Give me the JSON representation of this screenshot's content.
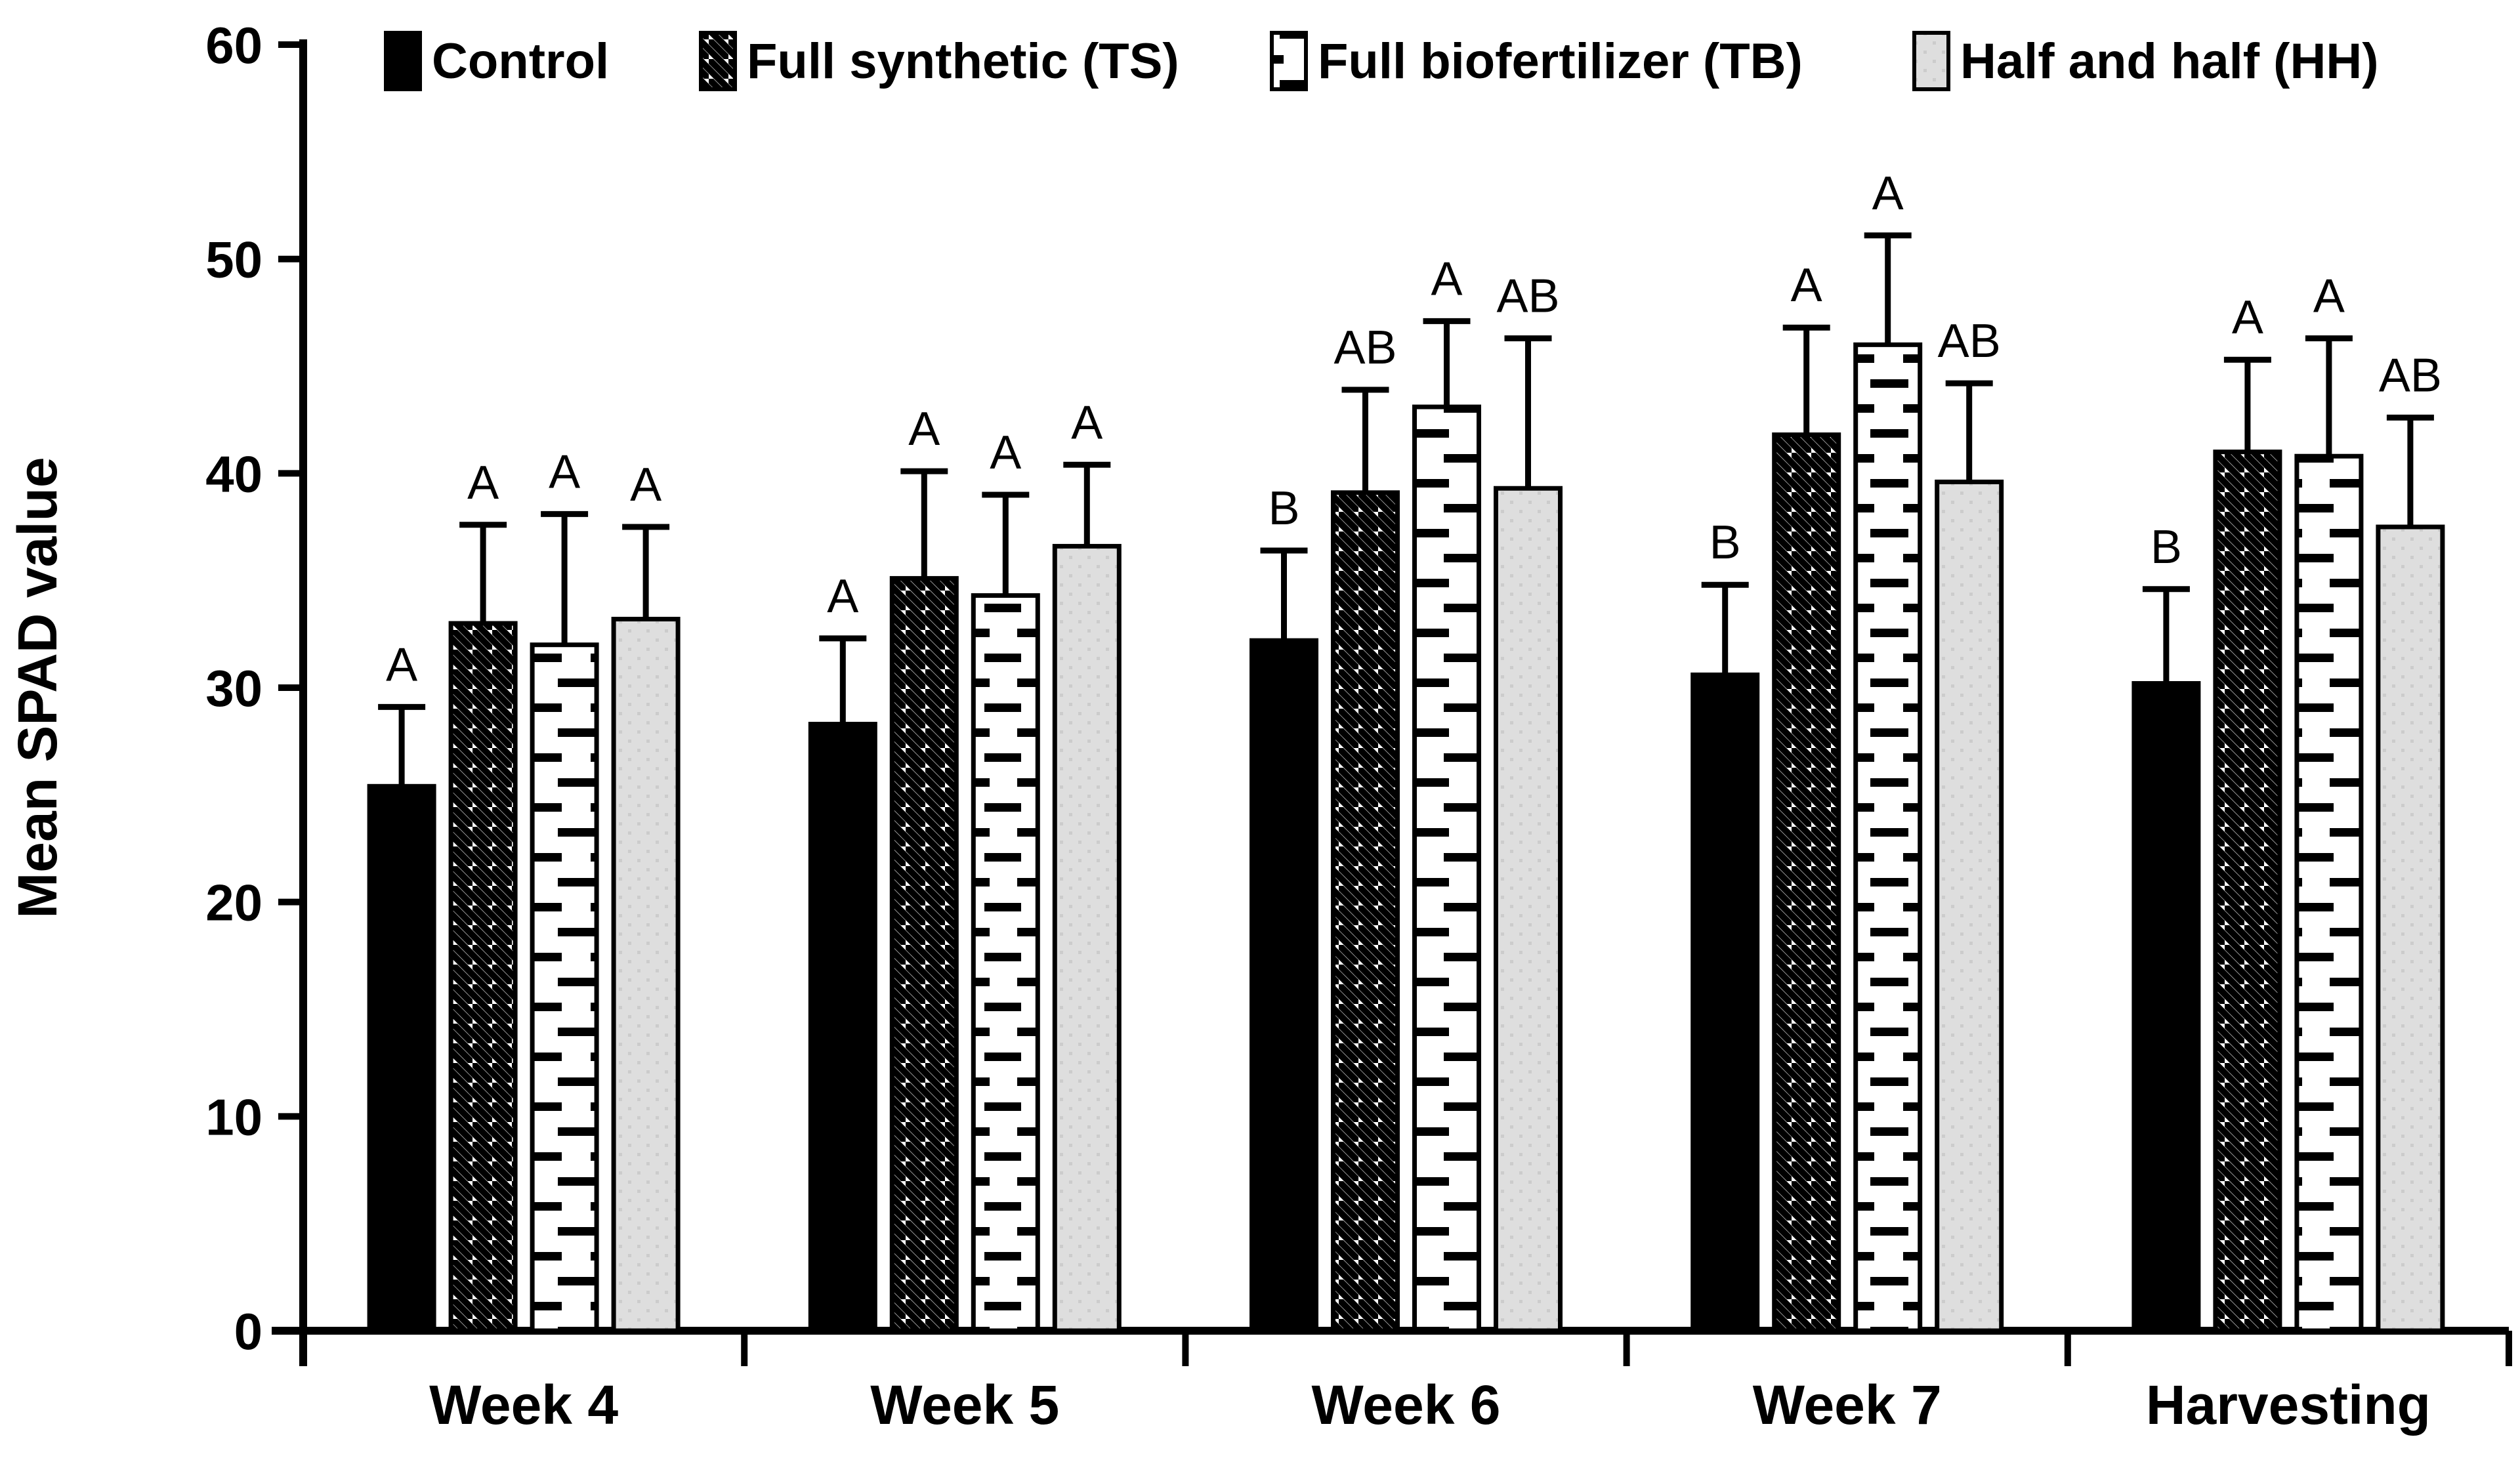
{
  "chart_data": {
    "type": "bar",
    "title": "",
    "ylabel": "Mean SPAD value",
    "xlabel": "",
    "ylim": [
      0,
      60
    ],
    "ytick_step": 10,
    "ytick_labels": [
      "0",
      "10",
      "20",
      "30",
      "40",
      "50",
      "60"
    ],
    "grid": false,
    "legend_position": "top",
    "error_bars": "upper only, capped",
    "categories": [
      "Week 4",
      "Week 5",
      "Week 6",
      "Week 7",
      "Harvesting"
    ],
    "series": [
      {
        "name": "Control",
        "swatch": "solid-black",
        "values": [
          25.4,
          28.3,
          32.2,
          30.6,
          30.2
        ],
        "errors": [
          3.7,
          4.0,
          4.2,
          4.2,
          4.4
        ],
        "letters": [
          "A",
          "A",
          "B",
          "B",
          "B"
        ]
      },
      {
        "name": "Full synthetic (TS)",
        "swatch": "diagonal-hatch",
        "values": [
          33.0,
          35.1,
          39.1,
          41.8,
          41.0
        ],
        "errors": [
          4.6,
          5.0,
          4.8,
          5.0,
          4.3
        ],
        "letters": [
          "A",
          "A",
          "AB",
          "A",
          "A"
        ]
      },
      {
        "name": "Full biofertilizer (TB)",
        "swatch": "horizontal-dash",
        "values": [
          32.0,
          34.3,
          43.1,
          46.0,
          40.8
        ],
        "errors": [
          6.1,
          4.7,
          4.0,
          5.1,
          5.5
        ],
        "letters": [
          "A",
          "A",
          "A",
          "A",
          "A"
        ]
      },
      {
        "name": "Half and half (HH)",
        "swatch": "light-gray-dots",
        "values": [
          33.2,
          36.6,
          39.3,
          39.6,
          37.5
        ],
        "errors": [
          4.3,
          3.8,
          7.0,
          4.6,
          5.1
        ],
        "letters": [
          "A",
          "A",
          "AB",
          "AB",
          "AB"
        ]
      }
    ],
    "colors": {
      "ink": "#000000",
      "bar_fill_white": "#ffffff",
      "bar_fill_gray": "#dedede",
      "background": "#ffffff"
    }
  }
}
